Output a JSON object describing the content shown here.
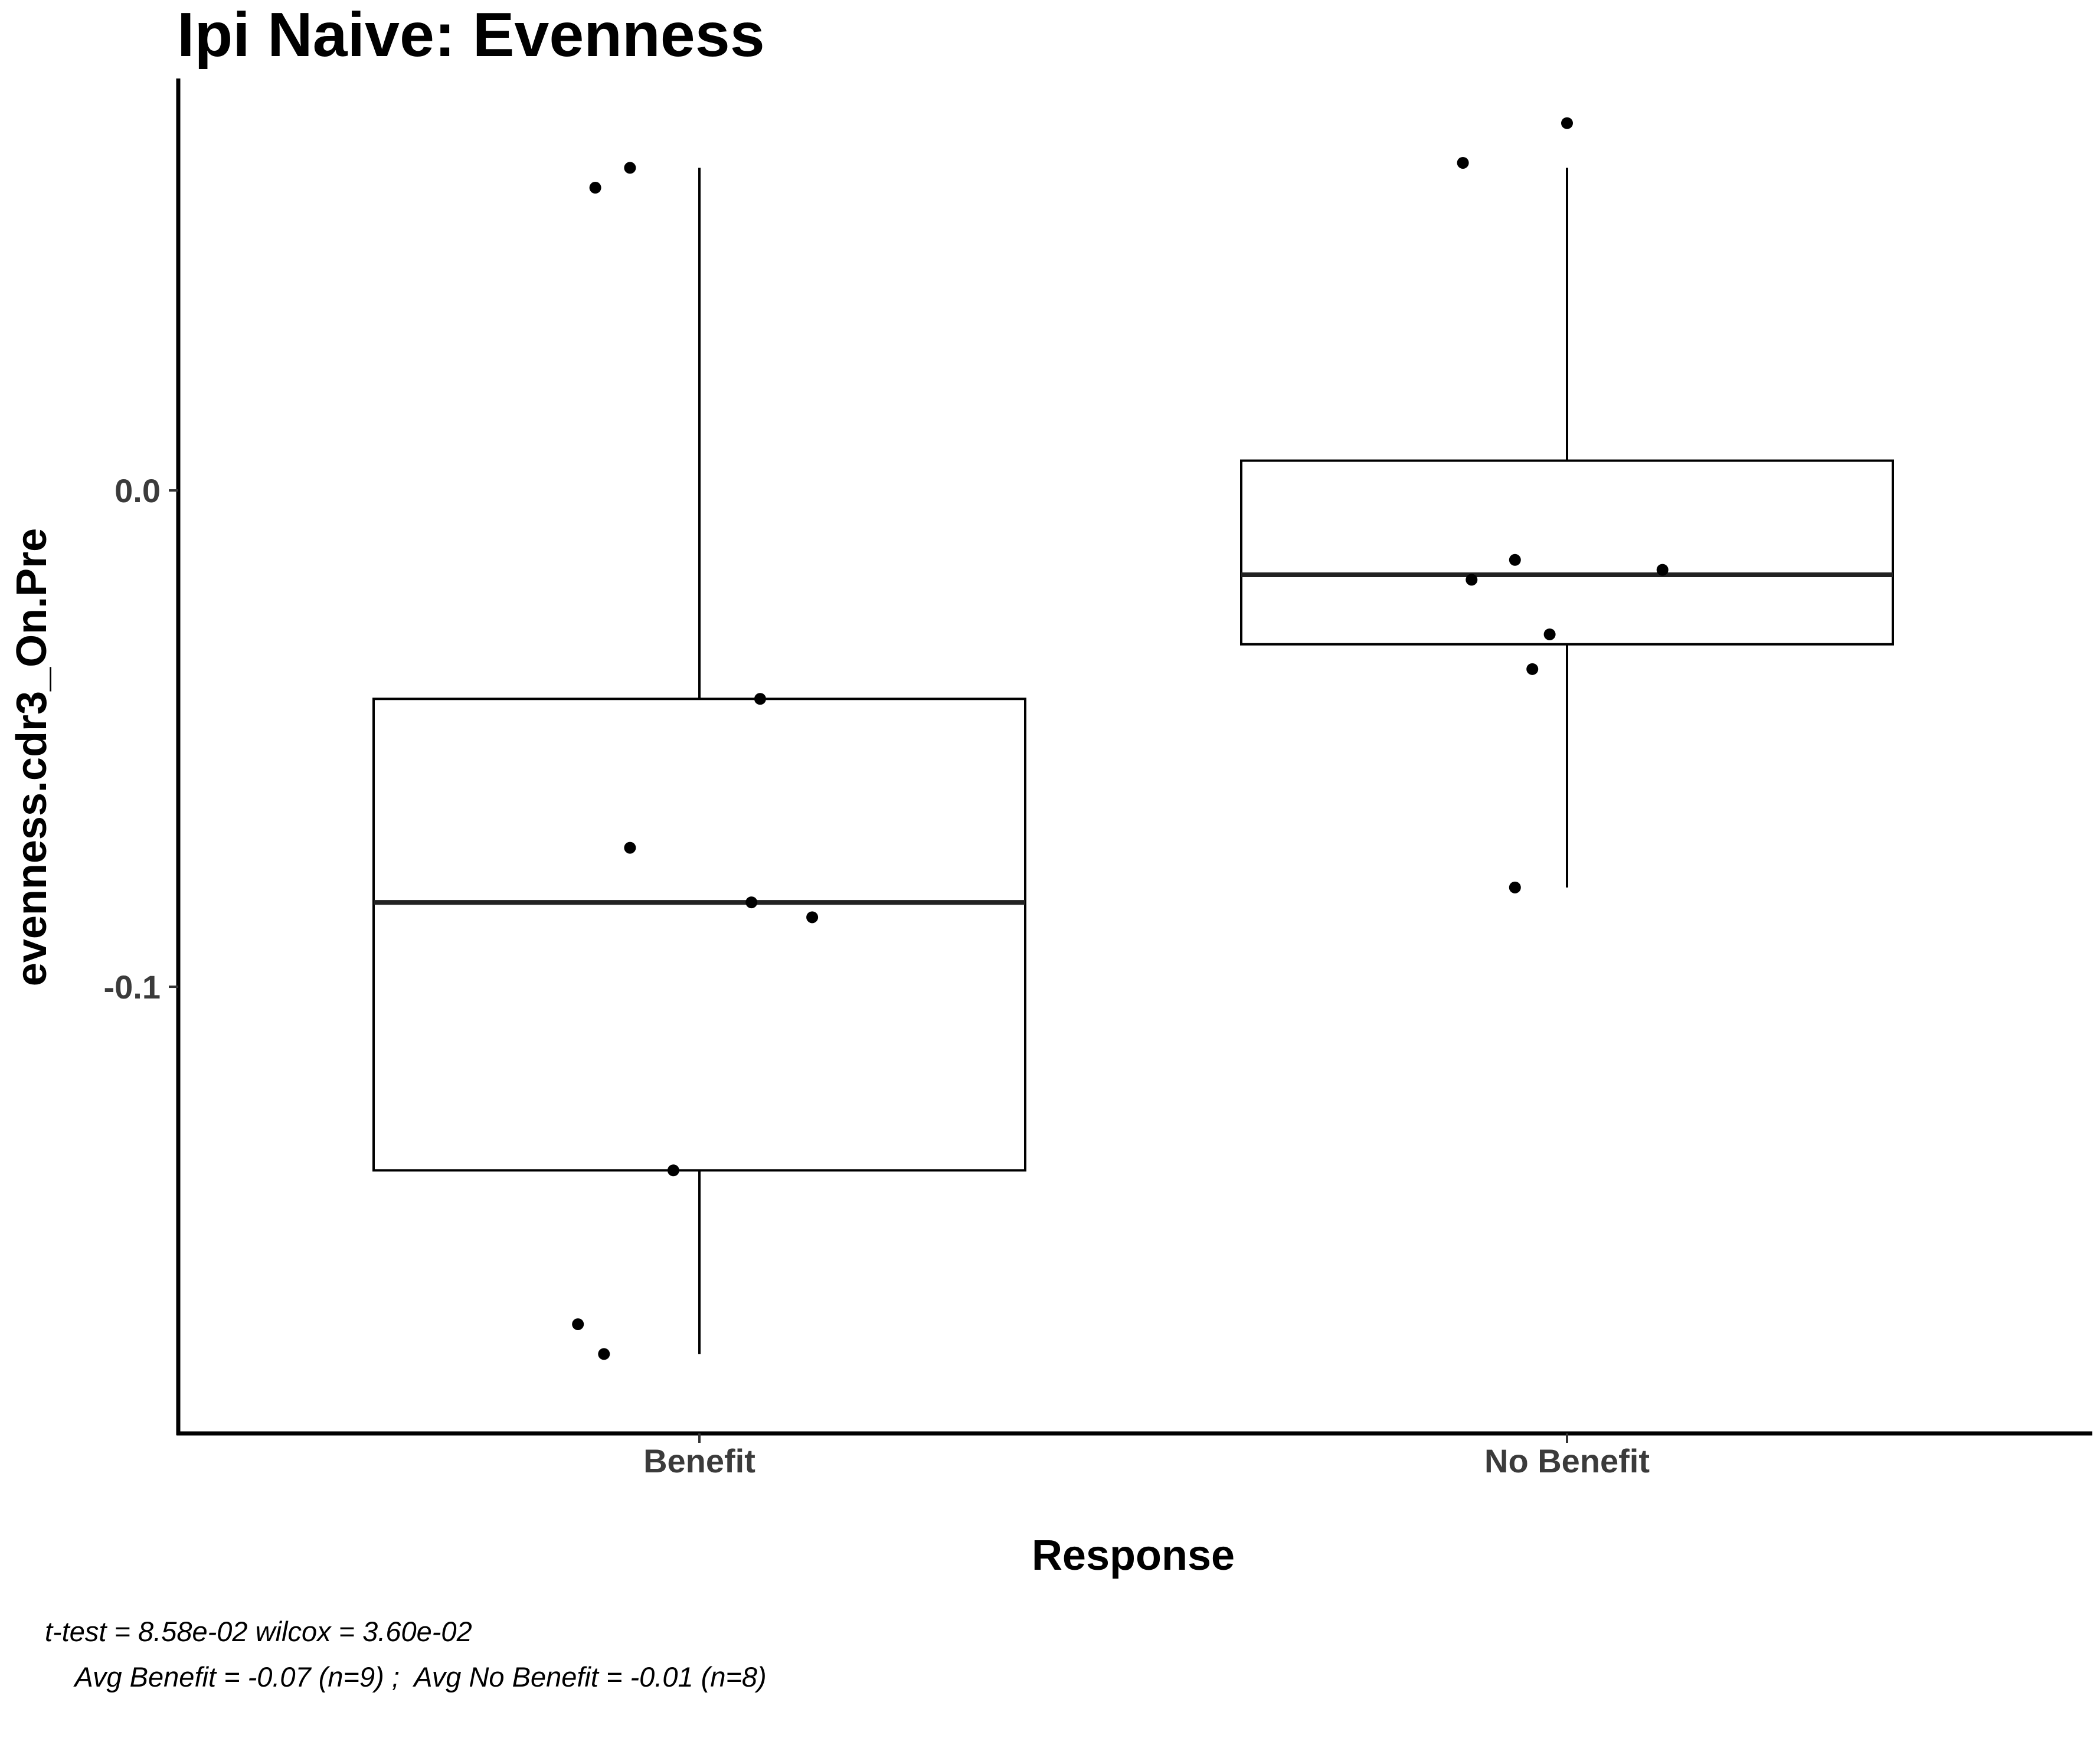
{
  "chart_data": {
    "type": "boxplot",
    "title": "Ipi Naive: Evenness",
    "xlabel": "Response",
    "ylabel": "evenness.cdr3_On.Pre",
    "ylim": [
      -0.19,
      0.083
    ],
    "yticks": [
      0.0,
      -0.1
    ],
    "ytick_labels": [
      "0.0",
      "-0.1"
    ],
    "grid": false,
    "legend": "none",
    "categories": [
      "Benefit",
      "No Benefit"
    ],
    "boxes": [
      {
        "category": "Benefit",
        "whisker_low": -0.174,
        "q1": -0.137,
        "median": -0.083,
        "q3": -0.042,
        "whisker_high": 0.065
      },
      {
        "category": "No Benefit",
        "whisker_low": -0.08,
        "q1": -0.031,
        "median": -0.017,
        "q3": 0.006,
        "whisker_high": 0.065
      }
    ],
    "points": [
      {
        "category": "Benefit",
        "jitter": -0.12,
        "y": 0.061
      },
      {
        "category": "Benefit",
        "jitter": -0.08,
        "y": 0.065
      },
      {
        "category": "Benefit",
        "jitter": 0.07,
        "y": -0.042
      },
      {
        "category": "Benefit",
        "jitter": -0.08,
        "y": -0.072
      },
      {
        "category": "Benefit",
        "jitter": 0.06,
        "y": -0.083
      },
      {
        "category": "Benefit",
        "jitter": 0.13,
        "y": -0.086
      },
      {
        "category": "Benefit",
        "jitter": -0.03,
        "y": -0.137
      },
      {
        "category": "Benefit",
        "jitter": -0.14,
        "y": -0.168
      },
      {
        "category": "Benefit",
        "jitter": -0.11,
        "y": -0.174
      },
      {
        "category": "No Benefit",
        "jitter": -0.12,
        "y": 0.066
      },
      {
        "category": "No Benefit",
        "jitter": 0.0,
        "y": 0.074
      },
      {
        "category": "No Benefit",
        "jitter": -0.06,
        "y": -0.014
      },
      {
        "category": "No Benefit",
        "jitter": 0.11,
        "y": -0.016
      },
      {
        "category": "No Benefit",
        "jitter": -0.11,
        "y": -0.018
      },
      {
        "category": "No Benefit",
        "jitter": -0.02,
        "y": -0.029
      },
      {
        "category": "No Benefit",
        "jitter": -0.04,
        "y": -0.036
      },
      {
        "category": "No Benefit",
        "jitter": -0.06,
        "y": -0.08
      }
    ],
    "annotations": [
      "t-test = 8.58e-02 wilcox = 3.60e-02",
      "    Avg Benefit = -0.07 (n=9) ;  Avg No Benefit = -0.01 (n=8)"
    ],
    "colors": {
      "box_stroke": "#000000",
      "median": "#222222",
      "points": "#000000",
      "tick_labels": "#3b3b3b"
    }
  }
}
